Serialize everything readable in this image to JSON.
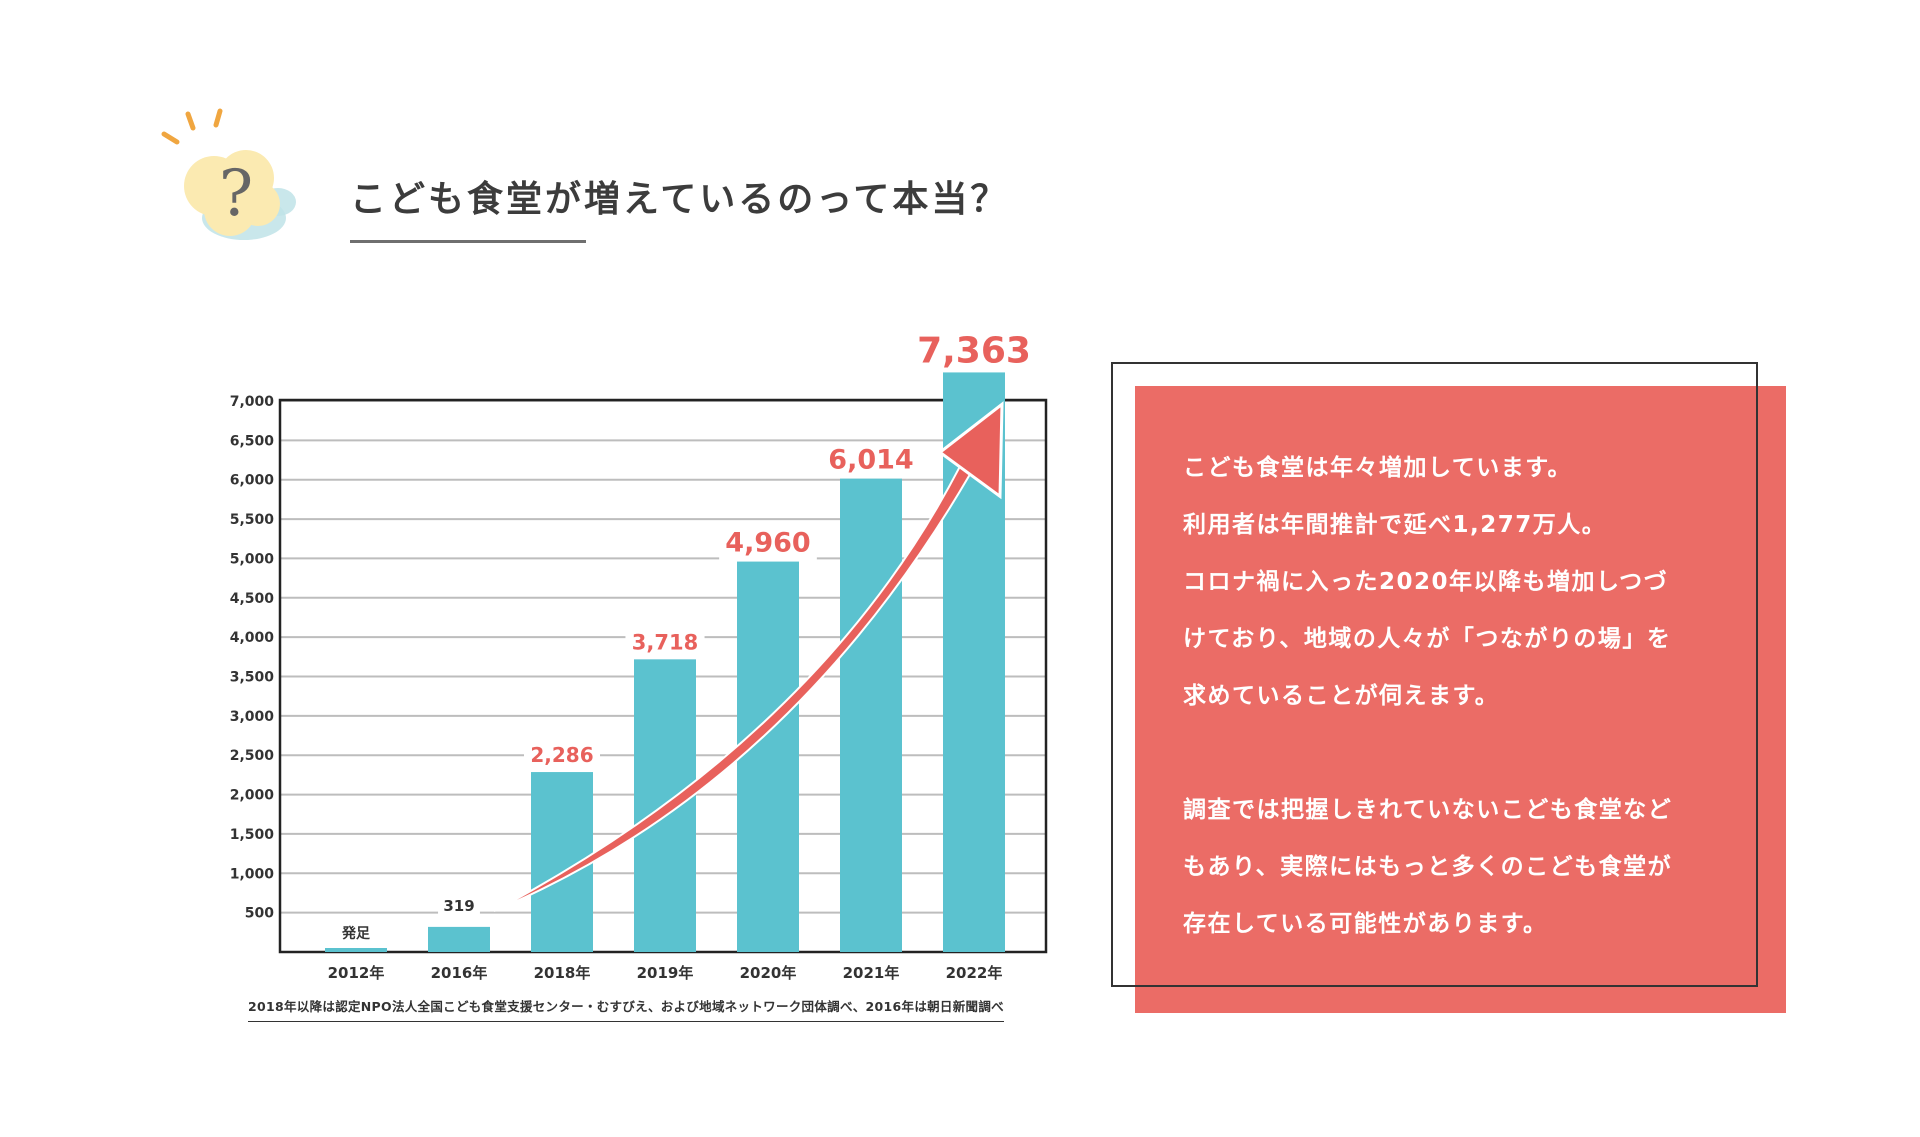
{
  "header": {
    "icon": "question-cloud-icon",
    "icon_glyph": "?",
    "title": "こども食堂が増えているのって本当？"
  },
  "colors": {
    "bar": "#5bc2cf",
    "highlight": "#e8615c",
    "panel": "#eb6c66",
    "grid": "#bdbdbd",
    "text": "#3c3c3c"
  },
  "chart_data": {
    "type": "bar",
    "categories": [
      "2012年",
      "2016年",
      "2018年",
      "2019年",
      "2020年",
      "2021年",
      "2022年"
    ],
    "values": [
      0,
      319,
      2286,
      3718,
      4960,
      6014,
      7363
    ],
    "data_labels": [
      "発足",
      "319",
      "2,286",
      "3,718",
      "4,960",
      "6,014",
      "7,363"
    ],
    "yticks": [
      "500",
      "1,000",
      "1,500",
      "2,000",
      "2,500",
      "3,000",
      "3,500",
      "4,000",
      "4,500",
      "5,000",
      "5,500",
      "6,000",
      "6,500",
      "7,000"
    ],
    "ylim": [
      0,
      7000
    ],
    "grid": true,
    "annotation": "upward trend arrow from 2016 to 2022",
    "note": "2018年以降は認定NPO法人全国こども食堂支援センター・むすびえ、および地域ネットワーク団体調べ、2016年は朝日新聞調べ"
  },
  "info": {
    "paragraph1": [
      "こども食堂は年々増加しています。",
      "利用者は年間推計で延べ1,277万人。",
      "コロナ禍に入った2020年以降も増加しつづ",
      "けており、地域の人々が「つながりの場」を",
      "求めていることが伺えます。"
    ],
    "paragraph2": [
      "調査では把握しきれていないこども食堂など",
      "もあり、実際にはもっと多くのこども食堂が",
      "存在している可能性があります。"
    ]
  }
}
